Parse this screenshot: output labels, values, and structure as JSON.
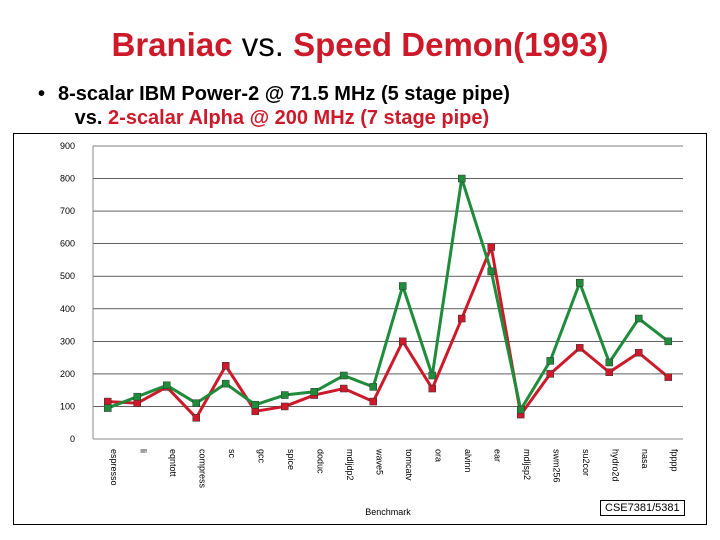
{
  "slide": {
    "title_part1": "Braniac",
    "title_vs": " vs. ",
    "title_part2": "Speed Demon(1993)",
    "bullet_line1": "8-scalar IBM Power-2 @ 71.5 MHz (5 stage pipe)",
    "bullet_vs": "vs. ",
    "bullet_line2": "2-scalar Alpha @ 200 MHz (7 stage pipe)",
    "footer": "CSE7381/5381"
  },
  "colors": {
    "red": "#cc1a2a",
    "green": "#1e8c3a",
    "grid": "#000000"
  },
  "chart_data": {
    "type": "line",
    "xlabel": "Benchmark",
    "ylabel": "",
    "ylim": [
      0,
      900
    ],
    "yticks": [
      0,
      100,
      200,
      300,
      400,
      500,
      600,
      700,
      800,
      900
    ],
    "grid": true,
    "categories": [
      "espresso",
      "li",
      "eqntott",
      "compress",
      "sc",
      "gcc",
      "spice",
      "doduc",
      "mdljdp2",
      "wave5",
      "tomcatv",
      "ora",
      "alvinn",
      "ear",
      "mdljsp2",
      "swm256",
      "su2cor",
      "hydro2d",
      "nasa",
      "fpppp"
    ],
    "series": [
      {
        "color": "#cc1a2a",
        "values": [
          115,
          110,
          160,
          65,
          225,
          85,
          100,
          135,
          155,
          115,
          300,
          155,
          370,
          590,
          75,
          200,
          280,
          205,
          265,
          190
        ]
      },
      {
        "color": "#1e8c3a",
        "values": [
          95,
          130,
          165,
          110,
          170,
          105,
          135,
          145,
          195,
          160,
          470,
          195,
          800,
          515,
          90,
          240,
          480,
          235,
          370,
          300
        ]
      }
    ]
  }
}
